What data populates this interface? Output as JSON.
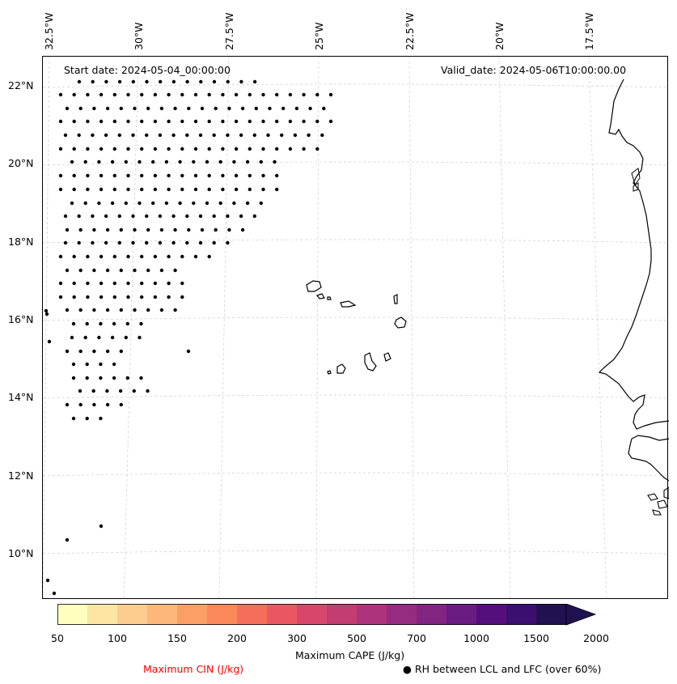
{
  "map": {
    "start_date": "Start date: 2024-05-04_00:00:00",
    "valid_date": "Valid_date: 2024-05-06T10:00:00.00",
    "lon_labels": [
      "32.5°W",
      "30°W",
      "27.5°W",
      "25°W",
      "22.5°W",
      "20°W",
      "17.5°W"
    ],
    "lat_labels": [
      "22°N",
      "20°N",
      "18°N",
      "16°N",
      "14°N",
      "12°N",
      "10°N"
    ],
    "dot_color": "#000000",
    "gridline_color": "#cccccc"
  },
  "colorbar": {
    "title": "Maximum CAPE (J/kg)",
    "tick_labels": [
      "50",
      "100",
      "150",
      "200",
      "300",
      "500",
      "700",
      "1000",
      "1500",
      "2000"
    ],
    "colors": [
      "#fffebe",
      "#fde6a4",
      "#fdcd8f",
      "#fdb77a",
      "#fc9f67",
      "#fa8859",
      "#f56e5a",
      "#ea5762",
      "#d9466b",
      "#c33c72",
      "#ad347c",
      "#962c80",
      "#812581",
      "#6a1c81",
      "#550f7a",
      "#3b0f6f",
      "#221150"
    ]
  },
  "legend": {
    "cin_label": "Maximum CIN (J/kg)",
    "cin_color": "#ff0000",
    "rh_label": "RH between LCL and LFC (over 60%)"
  }
}
